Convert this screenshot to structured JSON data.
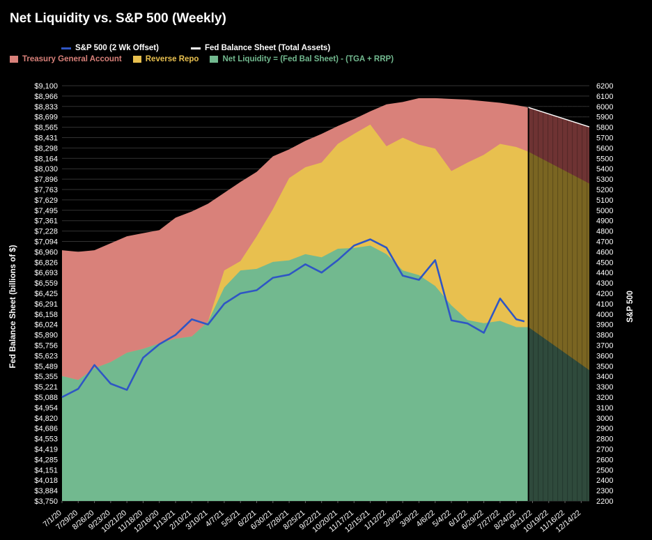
{
  "chart_data": {
    "type": "area",
    "title": "Net Liquidity vs. S&P 500 (Weekly)",
    "ylabel": "Fed Balance Sheet (billions of $)",
    "y2label": "S&P 500",
    "ylim": [
      3750,
      9100
    ],
    "y2lim": [
      2200,
      6200
    ],
    "y_ticks": [
      "$9,100",
      "$8,966",
      "$8,833",
      "$8,699",
      "$8,565",
      "$8,431",
      "$8,298",
      "$8,164",
      "$8,030",
      "$7,896",
      "$7,763",
      "$7,629",
      "$7,495",
      "$7,361",
      "$7,228",
      "$7,094",
      "$6,960",
      "$6,826",
      "$6,693",
      "$6,559",
      "$6,425",
      "$6,291",
      "$6,158",
      "$6,024",
      "$5,890",
      "$5,756",
      "$5,623",
      "$5,489",
      "$5,355",
      "$5,221",
      "$5,088",
      "$4,954",
      "$4,820",
      "$4,686",
      "$4,553",
      "$4,419",
      "$4,285",
      "$4,151",
      "$4,018",
      "$3,884",
      "$3,750"
    ],
    "y2_ticks": [
      "6200",
      "6100",
      "6000",
      "5900",
      "5800",
      "5700",
      "5600",
      "5500",
      "5400",
      "5300",
      "5200",
      "5100",
      "5000",
      "4900",
      "4800",
      "4700",
      "4600",
      "4500",
      "4400",
      "4300",
      "4200",
      "4100",
      "4000",
      "3900",
      "3800",
      "3700",
      "3600",
      "3500",
      "3400",
      "3300",
      "3200",
      "3100",
      "3000",
      "2900",
      "2800",
      "2700",
      "2600",
      "2500",
      "2400",
      "2300",
      "2200"
    ],
    "x_ticks": [
      "7/1/20",
      "7/29/20",
      "8/26/20",
      "9/23/20",
      "10/21/20",
      "11/18/20",
      "12/16/20",
      "1/13/21",
      "2/10/21",
      "3/10/21",
      "4/7/21",
      "5/5/21",
      "6/2/21",
      "6/30/21",
      "7/28/21",
      "8/25/21",
      "9/22/21",
      "10/20/21",
      "11/17/21",
      "12/15/21",
      "1/12/22",
      "2/9/22",
      "3/9/22",
      "4/6/22",
      "5/4/22",
      "6/1/22",
      "6/29/22",
      "7/27/22",
      "8/24/22",
      "9/21/22",
      "10/19/22",
      "11/16/22",
      "12/14/22"
    ],
    "legend": [
      {
        "name": "S&P 500 (2 Wk Offset)",
        "color": "#2f56c4",
        "kind": "line"
      },
      {
        "name": "Fed Balance Sheet (Total Assets)",
        "color": "#ffffff",
        "kind": "line"
      },
      {
        "name": "Treasury General Account",
        "color": "#d9817a",
        "kind": "area"
      },
      {
        "name": "Reverse Repo",
        "color": "#e8c04f",
        "kind": "area"
      },
      {
        "name": "Net Liquidity = (Fed Bal Sheet) - (TGA + RRP)",
        "color": "#72b98f",
        "kind": "area"
      }
    ],
    "projection": {
      "start": "9/14/22",
      "end": "12/28/22",
      "fed_start": 8820,
      "fed_end": 8570,
      "net_start": 5990,
      "net_end": 5435,
      "rrp_start": 8250,
      "rrp_end": 7840,
      "fed_color": "#6e3333",
      "rrp_color": "#7a6522",
      "net_color": "#2f4a3c"
    },
    "colors": {
      "grid": "#333333",
      "fed_line": "#ffffff",
      "divider": "#000000"
    },
    "series": [
      {
        "name": "Fed Balance Sheet (Total Assets)",
        "x": [
          "7/1/20",
          "7/29/20",
          "8/26/20",
          "9/23/20",
          "10/21/20",
          "11/18/20",
          "12/16/20",
          "1/13/21",
          "2/10/21",
          "3/10/21",
          "4/7/21",
          "5/5/21",
          "6/2/21",
          "6/30/21",
          "7/28/21",
          "8/25/21",
          "9/22/21",
          "10/20/21",
          "11/17/21",
          "12/15/21",
          "1/12/22",
          "2/9/22",
          "3/9/22",
          "4/6/22",
          "5/4/22",
          "6/1/22",
          "6/29/22",
          "7/27/22",
          "8/24/22",
          "9/14/22"
        ],
        "values": [
          6980,
          6960,
          6980,
          7070,
          7160,
          7200,
          7240,
          7400,
          7480,
          7580,
          7720,
          7860,
          7990,
          8190,
          8280,
          8390,
          8480,
          8580,
          8670,
          8770,
          8860,
          8890,
          8940,
          8940,
          8930,
          8920,
          8900,
          8880,
          8850,
          8820
        ]
      },
      {
        "name": "Reverse Repo",
        "x": [
          "7/1/20",
          "7/29/20",
          "8/26/20",
          "9/23/20",
          "10/21/20",
          "11/18/20",
          "12/16/20",
          "1/13/21",
          "2/10/21",
          "3/10/21",
          "4/7/21",
          "5/5/21",
          "6/2/21",
          "6/30/21",
          "7/28/21",
          "8/25/21",
          "9/22/21",
          "10/20/21",
          "11/17/21",
          "12/15/21",
          "1/12/22",
          "2/9/22",
          "3/9/22",
          "4/6/22",
          "5/4/22",
          "6/1/22",
          "6/29/22",
          "7/27/22",
          "8/24/22",
          "9/14/22"
        ],
        "values": [
          5360,
          5310,
          5460,
          5540,
          5660,
          5710,
          5780,
          5840,
          5870,
          6060,
          6720,
          6840,
          7160,
          7510,
          7910,
          8050,
          8110,
          8350,
          8480,
          8600,
          8320,
          8430,
          8340,
          8290,
          8000,
          8110,
          8210,
          8350,
          8310,
          8250
        ]
      },
      {
        "name": "Net Liquidity = (Fed Bal Sheet) - (TGA + RRP)",
        "x": [
          "7/1/20",
          "7/29/20",
          "8/26/20",
          "9/23/20",
          "10/21/20",
          "11/18/20",
          "12/16/20",
          "1/13/21",
          "2/10/21",
          "3/10/21",
          "4/7/21",
          "5/5/21",
          "6/2/21",
          "6/30/21",
          "7/28/21",
          "8/25/21",
          "9/22/21",
          "10/20/21",
          "11/17/21",
          "12/15/21",
          "1/12/22",
          "2/9/22",
          "3/9/22",
          "4/6/22",
          "5/4/22",
          "6/1/22",
          "6/29/22",
          "7/27/22",
          "8/24/22",
          "9/14/22"
        ],
        "values": [
          5360,
          5310,
          5460,
          5540,
          5660,
          5710,
          5780,
          5840,
          5870,
          6060,
          6500,
          6720,
          6740,
          6830,
          6850,
          6930,
          6890,
          7000,
          7010,
          7040,
          6930,
          6720,
          6660,
          6520,
          6270,
          6080,
          6040,
          6070,
          5990,
          5990
        ]
      },
      {
        "name": "S&P 500 (2 Wk Offset)",
        "x": [
          "7/1/20",
          "7/29/20",
          "8/26/20",
          "9/23/20",
          "10/21/20",
          "11/18/20",
          "12/16/20",
          "1/13/21",
          "2/10/21",
          "3/10/21",
          "4/7/21",
          "5/5/21",
          "6/2/21",
          "6/30/21",
          "7/28/21",
          "8/25/21",
          "9/22/21",
          "10/20/21",
          "11/17/21",
          "12/15/21",
          "1/12/22",
          "2/9/22",
          "3/9/22",
          "4/6/22",
          "5/4/22",
          "6/1/22",
          "6/29/22",
          "7/27/22",
          "8/24/22",
          "9/7/22"
        ],
        "values": [
          3200,
          3280,
          3510,
          3330,
          3270,
          3580,
          3710,
          3800,
          3950,
          3900,
          4100,
          4200,
          4230,
          4350,
          4380,
          4480,
          4400,
          4520,
          4660,
          4720,
          4640,
          4370,
          4330,
          4520,
          3940,
          3910,
          3820,
          4150,
          3950,
          3930
        ]
      }
    ]
  }
}
